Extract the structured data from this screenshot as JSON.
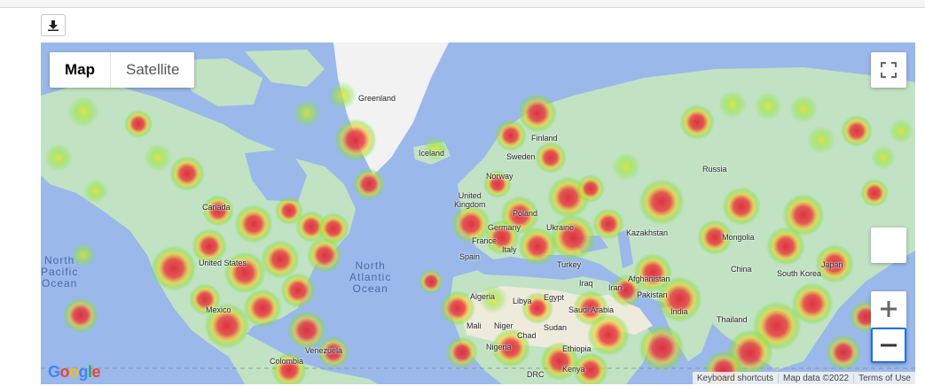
{
  "toolbar": {
    "download_icon": "download-icon"
  },
  "map": {
    "type_options": [
      {
        "label": "Map",
        "active": true
      },
      {
        "label": "Satellite",
        "active": false
      }
    ],
    "colors": {
      "ocean": "#9bb8ea",
      "land": "#c2e2c4",
      "ice": "#f2f2f2",
      "desert": "#eeeadc",
      "heat_low": "#7ee03a",
      "heat_mid": "#f0e020",
      "heat_high": "#e43a40"
    },
    "country_labels": {
      "greenland": "Greenland",
      "iceland": "Iceland",
      "finland": "Finland",
      "sweden": "Sweden",
      "norway": "Norway",
      "russia": "Russia",
      "united_kingdom": "United\nKingdom",
      "poland": "Poland",
      "germany": "Germany",
      "ukraine": "Ukraine",
      "france": "France",
      "italy": "Italy",
      "kazakhstan": "Kazakhstan",
      "mongolia": "Mongolia",
      "spain": "Spain",
      "turkey": "Turkey",
      "china": "China",
      "south_korea": "South Korea",
      "japan": "Japan",
      "canada": "Canada",
      "united_states": "United States",
      "mexico": "Mexico",
      "algeria": "Algeria",
      "libya": "Libya",
      "egypt": "Egypt",
      "iraq": "Iraq",
      "iran": "Iran",
      "afghanistan": "Afghanistan",
      "pakistan": "Pakistan",
      "saudi_arabia": "Saudi Arabia",
      "india": "India",
      "thailand": "Thailand",
      "mali": "Mali",
      "niger": "Niger",
      "chad": "Chad",
      "sudan": "Sudan",
      "nigeria": "Nigeria",
      "ethiopia": "Ethiopia",
      "venezuela": "Venezuela",
      "colombia": "Colombia",
      "drc": "DRC",
      "kenya": "Kenya"
    },
    "ocean_labels": {
      "north_pacific": "North\nPacific\nOcean",
      "north_atlantic": "North\nAtlantic\nOcean"
    },
    "footer": {
      "shortcuts": "Keyboard shortcuts",
      "map_data": "Map data ©2022",
      "terms": "Terms of Use"
    },
    "logo": "Google",
    "controls": {
      "fullscreen_icon": "fullscreen-icon",
      "zoom_in_icon": "plus-icon",
      "zoom_out_icon": "minus-icon",
      "pegman_icon": "street-view-icon"
    }
  }
}
